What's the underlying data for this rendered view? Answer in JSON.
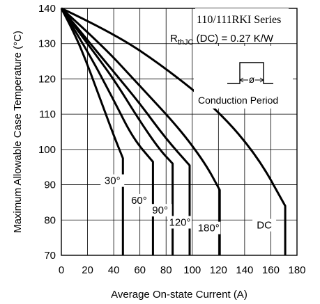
{
  "chart_data": {
    "type": "line",
    "series_title": "110/111RKI Series",
    "rth_label_main": "R",
    "rth_label_sub": "thJC",
    "rth_label_rest": " (DC) = 0.27 K/W",
    "conduction_symbol": "ø",
    "conduction_label": "Conduction Period",
    "xlabel": "Average On-state Current (A)",
    "ylabel": "Maximum Allowable Case Temperature (°C)",
    "xlim": [
      0,
      180
    ],
    "ylim": [
      70,
      140
    ],
    "xticks": [
      "0",
      "20",
      "40",
      "60",
      "80",
      "100",
      "120",
      "140",
      "160",
      "180"
    ],
    "yticks": [
      "70",
      "80",
      "90",
      "100",
      "110",
      "120",
      "130",
      "140"
    ],
    "grid": true,
    "series": [
      {
        "name": "30°",
        "x": [
          0,
          10,
          20,
          30,
          40,
          47,
          47
        ],
        "y": [
          140,
          133,
          124,
          114,
          104,
          97.5,
          70
        ]
      },
      {
        "name": "60°",
        "x": [
          0,
          20,
          40,
          55,
          70,
          70
        ],
        "y": [
          140,
          128,
          114,
          103,
          96.5,
          70
        ]
      },
      {
        "name": "90°",
        "x": [
          0,
          20,
          40,
          60,
          75,
          85,
          85
        ],
        "y": [
          140,
          130,
          120,
          108,
          100,
          96,
          70
        ]
      },
      {
        "name": "120°",
        "x": [
          0,
          20,
          40,
          60,
          80,
          98,
          98
        ],
        "y": [
          140,
          131,
          122,
          113,
          103,
          95.5,
          70
        ]
      },
      {
        "name": "180°",
        "x": [
          0,
          30,
          60,
          90,
          110,
          121,
          121
        ],
        "y": [
          140,
          130,
          118,
          106,
          96,
          88.5,
          70
        ]
      },
      {
        "name": "DC",
        "x": [
          0,
          40,
          80,
          120,
          150,
          171,
          171
        ],
        "y": [
          140,
          133,
          123,
          111,
          98,
          84,
          70
        ]
      }
    ],
    "series_labels": [
      "30°",
      "60°",
      "90°",
      "120°",
      "180°",
      "DC"
    ]
  }
}
